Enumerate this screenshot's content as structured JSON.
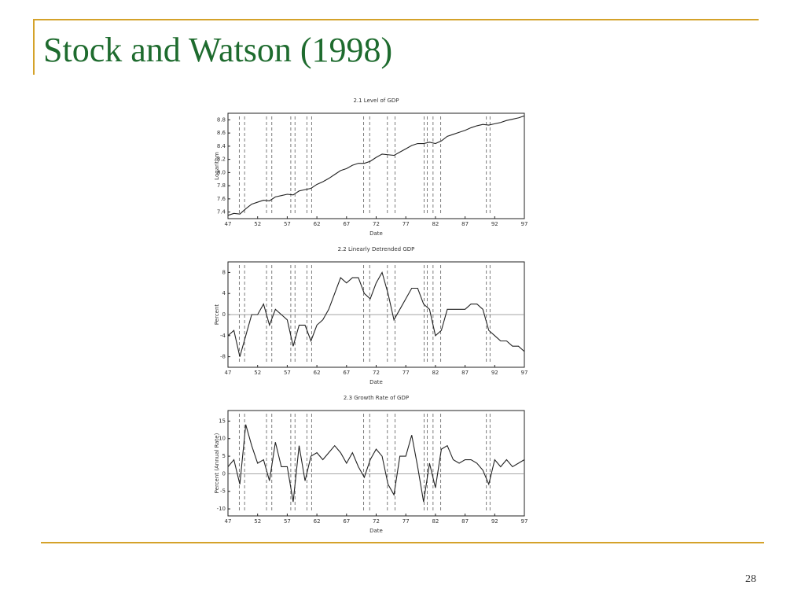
{
  "title": "Stock and Watson (1998)",
  "page_number": "28",
  "chart_data": [
    {
      "type": "line",
      "title": "2.1 Level of GDP",
      "x_label": "Date",
      "y_label": "Logarithm",
      "x": [
        47,
        48,
        49,
        50,
        51,
        52,
        53,
        54,
        55,
        56,
        57,
        58,
        59,
        60,
        61,
        62,
        63,
        64,
        65,
        66,
        67,
        68,
        69,
        70,
        71,
        72,
        73,
        74,
        75,
        76,
        77,
        78,
        79,
        80,
        81,
        82,
        83,
        84,
        85,
        86,
        87,
        88,
        89,
        90,
        91,
        92,
        93,
        94,
        95,
        96,
        97
      ],
      "values": [
        7.35,
        7.38,
        7.37,
        7.45,
        7.52,
        7.55,
        7.58,
        7.57,
        7.63,
        7.65,
        7.67,
        7.66,
        7.72,
        7.74,
        7.76,
        7.82,
        7.86,
        7.91,
        7.97,
        8.03,
        8.06,
        8.11,
        8.14,
        8.14,
        8.17,
        8.23,
        8.28,
        8.27,
        8.26,
        8.31,
        8.36,
        8.41,
        8.44,
        8.44,
        8.46,
        8.44,
        8.48,
        8.55,
        8.58,
        8.61,
        8.64,
        8.68,
        8.71,
        8.73,
        8.72,
        8.74,
        8.76,
        8.79,
        8.81,
        8.83,
        8.86
      ],
      "color": "#222",
      "xlim": [
        47,
        97
      ],
      "xticks": [
        47,
        52,
        57,
        62,
        67,
        72,
        77,
        82,
        87,
        92,
        97
      ],
      "ylim": [
        7.3,
        8.9
      ],
      "yticks": [
        7.4,
        7.6,
        7.8,
        {
          "value": 8,
          "label": "8.0"
        },
        8.2,
        8.4,
        8.6,
        8.8
      ],
      "zero_line": false,
      "recessions": [
        [
          48.9,
          49.8
        ],
        [
          53.5,
          54.4
        ],
        [
          57.6,
          58.3
        ],
        [
          60.3,
          61.1
        ],
        [
          69.9,
          70.9
        ],
        [
          73.9,
          75.2
        ],
        [
          80.1,
          80.6
        ],
        [
          81.6,
          82.9
        ],
        [
          90.6,
          91.2
        ]
      ]
    },
    {
      "type": "line",
      "title": "2.2 Linearly Detrended GDP",
      "x_label": "Date",
      "y_label": "Percent",
      "x": [
        47,
        48,
        49,
        50,
        51,
        52,
        53,
        54,
        55,
        56,
        57,
        58,
        59,
        60,
        61,
        62,
        63,
        64,
        65,
        66,
        67,
        68,
        69,
        70,
        71,
        72,
        73,
        74,
        75,
        76,
        77,
        78,
        79,
        80,
        81,
        82,
        83,
        84,
        85,
        86,
        87,
        88,
        89,
        90,
        91,
        92,
        93,
        94,
        95,
        96,
        97
      ],
      "values": [
        -4,
        -3,
        -8,
        -4,
        0,
        0,
        2,
        -2,
        1,
        0,
        -1,
        -6,
        -2,
        -2,
        -5,
        -2,
        -1,
        1,
        4,
        7,
        6,
        7,
        7,
        4,
        3,
        6,
        8,
        4,
        -1,
        1,
        3,
        5,
        5,
        2,
        1,
        -4,
        -3,
        1,
        1,
        1,
        1,
        2,
        2,
        1,
        -3,
        -4,
        -5,
        -5,
        -6,
        -6,
        -7
      ],
      "color": "#222",
      "xlim": [
        47,
        97
      ],
      "xticks": [
        47,
        52,
        57,
        62,
        67,
        72,
        77,
        82,
        87,
        92,
        97
      ],
      "ylim": [
        -10,
        10
      ],
      "yticks": [
        -8,
        -4,
        0,
        4,
        8
      ],
      "zero_line": true,
      "recessions": [
        [
          48.9,
          49.8
        ],
        [
          53.5,
          54.4
        ],
        [
          57.6,
          58.3
        ],
        [
          60.3,
          61.1
        ],
        [
          69.9,
          70.9
        ],
        [
          73.9,
          75.2
        ],
        [
          80.1,
          80.6
        ],
        [
          81.6,
          82.9
        ],
        [
          90.6,
          91.2
        ]
      ]
    },
    {
      "type": "line",
      "title": "2.3 Growth Rate of GDP",
      "x_label": "Date",
      "y_label": "Percent (Annual Rate)",
      "x": [
        47,
        48,
        49,
        50,
        51,
        52,
        53,
        54,
        55,
        56,
        57,
        58,
        59,
        60,
        61,
        62,
        63,
        64,
        65,
        66,
        67,
        68,
        69,
        70,
        71,
        72,
        73,
        74,
        75,
        76,
        77,
        78,
        79,
        80,
        81,
        82,
        83,
        84,
        85,
        86,
        87,
        88,
        89,
        90,
        91,
        92,
        93,
        94,
        95,
        96,
        97
      ],
      "values": [
        2,
        4,
        -3,
        14,
        8,
        3,
        4,
        -2,
        9,
        2,
        2,
        -8,
        8,
        -2,
        5,
        6,
        4,
        6,
        8,
        6,
        3,
        6,
        2,
        -1,
        4,
        7,
        5,
        -3,
        -6,
        5,
        5,
        11,
        2,
        -8,
        3,
        -4,
        7,
        8,
        4,
        3,
        4,
        4,
        3,
        1,
        -3,
        4,
        2,
        4,
        2,
        3,
        4
      ],
      "color": "#222",
      "xlim": [
        47,
        97
      ],
      "xticks": [
        47,
        52,
        57,
        62,
        67,
        72,
        77,
        82,
        87,
        92,
        97
      ],
      "ylim": [
        -12,
        18
      ],
      "yticks": [
        -10,
        -5,
        0,
        5,
        10,
        15
      ],
      "zero_line": true,
      "recessions": [
        [
          48.9,
          49.8
        ],
        [
          53.5,
          54.4
        ],
        [
          57.6,
          58.3
        ],
        [
          60.3,
          61.1
        ],
        [
          69.9,
          70.9
        ],
        [
          73.9,
          75.2
        ],
        [
          80.1,
          80.6
        ],
        [
          81.6,
          82.9
        ],
        [
          90.6,
          91.2
        ]
      ]
    }
  ]
}
